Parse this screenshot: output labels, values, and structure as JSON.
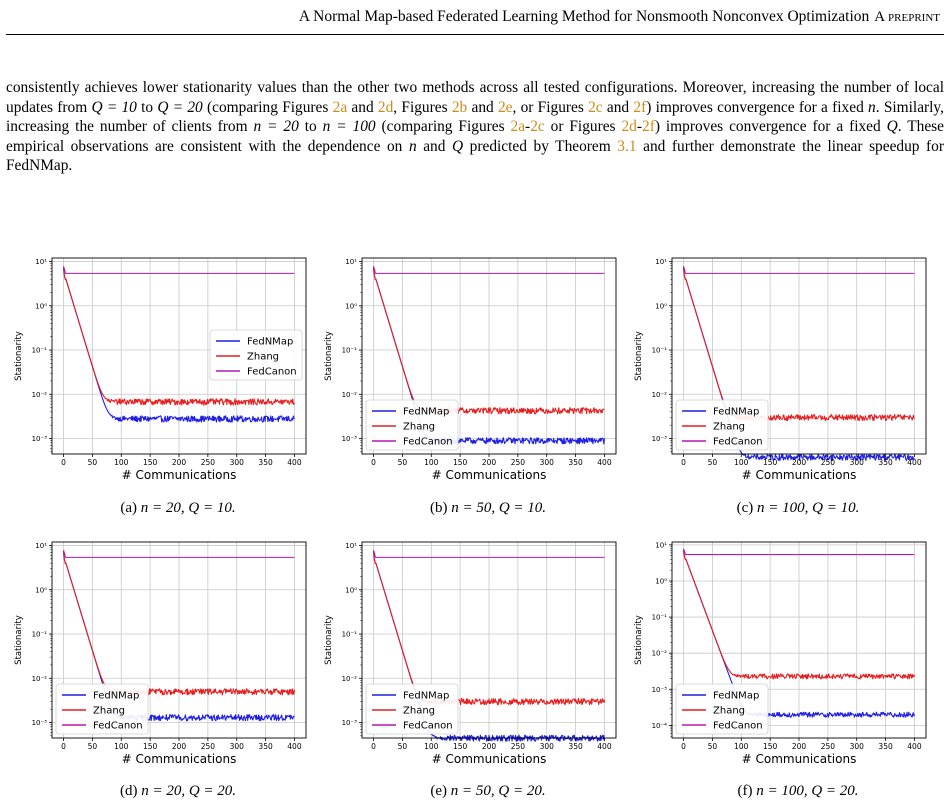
{
  "header": {
    "title": "A Normal Map-based Federated Learning Method for Nonsmooth Nonconvex Optimization",
    "tag": "A preprint"
  },
  "paragraph": {
    "s1": "consistently achieves lower stationarity values than the other two methods across all tested configurations. Moreover, increasing the number of local updates from ",
    "q10": "Q = 10",
    "to": " to ",
    "q20": "Q = 20",
    "s2": " (comparing Figures ",
    "r2a": "2a",
    "and": " and ",
    "r2d": "2d",
    "comma_fig": ", Figures ",
    "r2b": "2b",
    "and2": " and ",
    "r2e": "2e",
    "comma_or": ", or Figures ",
    "r2c": "2c",
    "and3": " and ",
    "r2f": "2f",
    "s3": ") improves convergence for a fixed ",
    "n": "n",
    "s4": ". Similarly, increasing the number of clients from ",
    "n20": "n = 20",
    "to2": " to ",
    "n100": "n = 100",
    "s5": " (comparing Figures ",
    "r2a2": "2a",
    "dash": "-",
    "r2c2": "2c",
    "or": " or Figures ",
    "r2d2": "2d",
    "dash2": "-",
    "r2f2": "2f",
    "s6": ") improves convergence for a fixed ",
    "Q": "Q",
    "s7": ". These empirical observations are consistent with the dependence on ",
    "n2": "n",
    "and4": " and ",
    "Q2": "Q",
    "s8": " predicted by Theorem ",
    "r31": "3.1",
    "s9": " and further demonstrate the linear speedup for FedNMap."
  },
  "figures": [
    {
      "id": "a",
      "caption_prefix": "(a) ",
      "caption_math": "n = 20, Q = 10.",
      "legend_pos": "mid-right",
      "ylim_exp": [
        -3,
        1
      ],
      "plateau": {
        "FedNMap": 0.0028,
        "Zhang": 0.0068,
        "FedCanon": 5.4
      }
    },
    {
      "id": "b",
      "caption_prefix": "(b) ",
      "caption_math": "n = 50, Q = 10.",
      "legend_pos": "lower-left",
      "ylim_exp": [
        -3,
        1
      ],
      "plateau": {
        "FedNMap": 0.0009,
        "Zhang": 0.0043,
        "FedCanon": 5.4
      }
    },
    {
      "id": "c",
      "caption_prefix": "(c) ",
      "caption_math": "n = 100, Q = 10.",
      "legend_pos": "lower-left",
      "ylim_exp": [
        -3,
        1
      ],
      "plateau": {
        "FedNMap": 0.00038,
        "Zhang": 0.003,
        "FedCanon": 5.4
      }
    },
    {
      "id": "d",
      "caption_prefix": "(d) ",
      "caption_math": "n = 20, Q = 20.",
      "legend_pos": "lower-left",
      "ylim_exp": [
        -3,
        1
      ],
      "plateau": {
        "FedNMap": 0.0013,
        "Zhang": 0.005,
        "FedCanon": 5.4
      }
    },
    {
      "id": "e",
      "caption_prefix": "(e) ",
      "caption_math": "n = 50, Q = 20.",
      "legend_pos": "lower-left",
      "ylim_exp": [
        -3,
        1
      ],
      "plateau": {
        "FedNMap": 0.00045,
        "Zhang": 0.003,
        "FedCanon": 5.4
      }
    },
    {
      "id": "f",
      "caption_prefix": "(f) ",
      "caption_math": "n = 100, Q = 20.",
      "legend_pos": "lower-left",
      "ylim_exp": [
        -4,
        1
      ],
      "plateau": {
        "FedNMap": 0.0002,
        "Zhang": 0.0023,
        "FedCanon": 5.4
      }
    }
  ],
  "chart_common": {
    "xlabel": "# Communications",
    "ylabel": "Stationarity",
    "xticks": [
      0,
      50,
      100,
      150,
      200,
      250,
      300,
      350,
      400
    ],
    "series_names": [
      "FedNMap",
      "Zhang",
      "FedCanon"
    ],
    "series_colors": {
      "FedNMap": "#1f1fe6",
      "Zhang": "#e61f1f",
      "FedCanon": "#b31ab3"
    },
    "start_value": 6.0,
    "decay_rate": 0.043,
    "grid": "on",
    "yscale": "log"
  }
}
